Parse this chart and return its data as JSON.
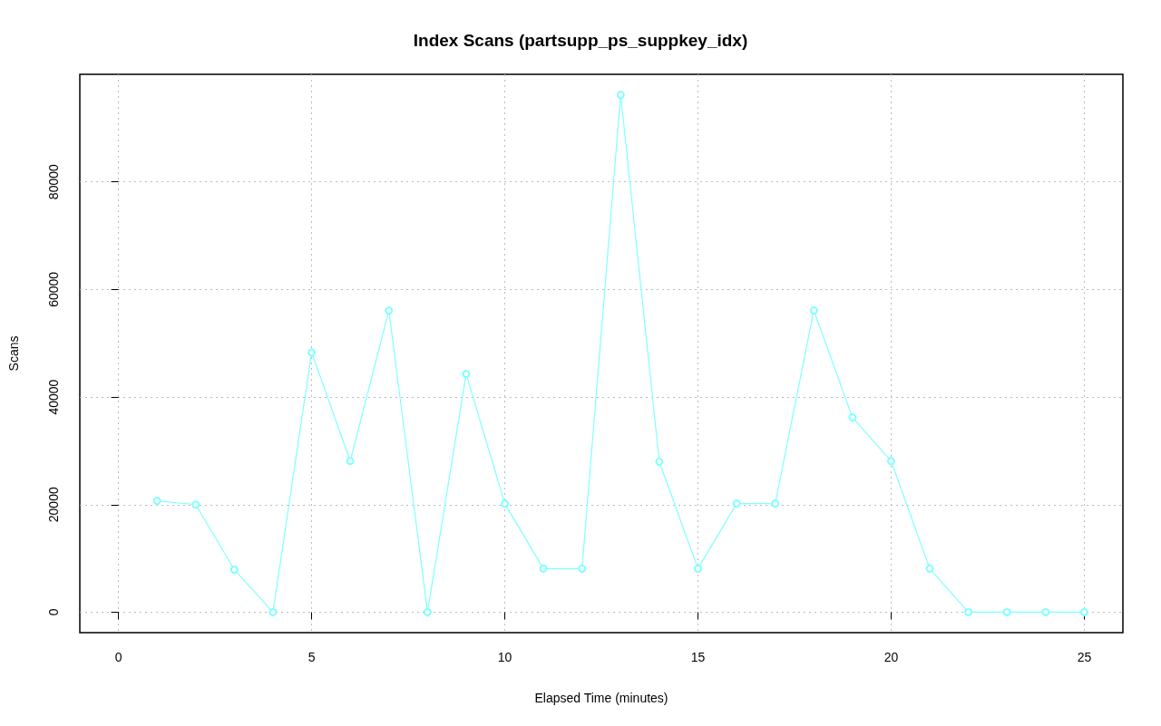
{
  "chart_data": {
    "type": "line",
    "title": "Index Scans (partsupp_ps_suppkey_idx)",
    "xlabel": "Elapsed Time (minutes)",
    "ylabel": "Scans",
    "x": [
      1,
      2,
      3,
      4,
      5,
      6,
      7,
      8,
      9,
      10,
      11,
      12,
      13,
      14,
      15,
      16,
      17,
      18,
      19,
      20,
      21,
      22,
      23,
      24,
      25
    ],
    "series": [
      {
        "color": "#80ffff",
        "values": [
          20700,
          20000,
          7900,
          0,
          48300,
          28100,
          56100,
          0,
          44300,
          20200,
          8100,
          8100,
          96200,
          28000,
          8100,
          20200,
          20200,
          56100,
          36200,
          28100,
          8100,
          0,
          0,
          0,
          0
        ]
      }
    ],
    "xlim": [
      -1,
      26
    ],
    "xticks": [
      0,
      5,
      10,
      15,
      20,
      25
    ],
    "ylim": [
      -3800,
      100000
    ],
    "yticks": [
      0,
      20000,
      40000,
      60000,
      80000
    ],
    "grid": true,
    "marker": "circle",
    "line_style": "solid"
  }
}
